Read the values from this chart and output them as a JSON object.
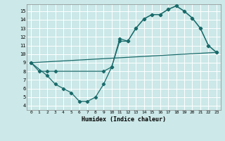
{
  "title": "",
  "xlabel": "Humidex (Indice chaleur)",
  "bg_color": "#cce8e8",
  "grid_color": "#ffffff",
  "line_color": "#1a6b6b",
  "xlim": [
    -0.5,
    23.5
  ],
  "ylim": [
    3.5,
    15.8
  ],
  "yticks": [
    4,
    5,
    6,
    7,
    8,
    9,
    10,
    11,
    12,
    13,
    14,
    15
  ],
  "xticks": [
    0,
    1,
    2,
    3,
    4,
    5,
    6,
    7,
    8,
    9,
    10,
    11,
    12,
    13,
    14,
    15,
    16,
    17,
    18,
    19,
    20,
    21,
    22,
    23
  ],
  "line1_x": [
    0,
    1,
    2,
    3,
    9,
    10,
    11,
    12,
    13,
    14,
    15,
    16,
    17,
    18,
    19,
    20,
    21,
    22,
    23
  ],
  "line1_y": [
    9,
    8,
    8,
    8,
    8,
    8.5,
    11.5,
    11.5,
    13,
    14.1,
    14.6,
    14.6,
    15.2,
    15.6,
    15.0,
    14.2,
    13.0,
    11.0,
    10.2
  ],
  "line2_x": [
    0,
    2,
    3,
    4,
    5,
    6,
    7,
    8,
    9,
    10,
    11,
    12,
    13,
    14,
    15,
    16,
    17,
    18,
    19,
    20,
    21,
    22,
    23
  ],
  "line2_y": [
    9,
    7.5,
    6.5,
    6.0,
    5.5,
    4.5,
    4.5,
    5.0,
    6.5,
    8.5,
    11.8,
    11.5,
    13.0,
    14.1,
    14.6,
    14.6,
    15.2,
    15.6,
    15.0,
    14.2,
    13.0,
    11.0,
    10.2
  ],
  "line3_x": [
    0,
    23
  ],
  "line3_y": [
    9,
    10.2
  ]
}
